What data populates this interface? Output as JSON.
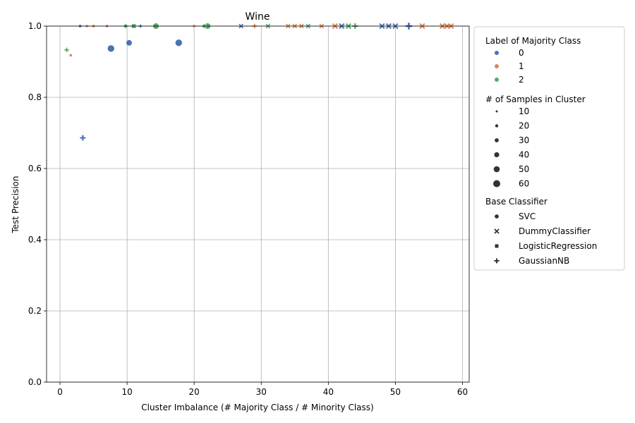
{
  "colors": {
    "class_0": "#4c72b0",
    "class_1": "#dd8452",
    "class_2": "#55a868",
    "grid": "#b0b0b0",
    "legend_neutral": "#333333"
  },
  "chart_data": {
    "type": "scatter",
    "title": "Wine",
    "xlabel": "Cluster Imbalance (# Majority Class / # Minority Class)",
    "ylabel": "Test Precision",
    "xlim": [
      -2,
      61
    ],
    "ylim": [
      0,
      1
    ],
    "xticks": [
      0,
      10,
      20,
      30,
      40,
      50,
      60
    ],
    "yticks": [
      0.0,
      0.2,
      0.4,
      0.6,
      0.8,
      1.0
    ],
    "grid": true,
    "legend_position": "outside-right",
    "legend": {
      "hue_title": "Label of Majority Class",
      "hue_labels": [
        "0",
        "1",
        "2"
      ],
      "size_title": "# of Samples in Cluster",
      "size_labels": [
        "10",
        "20",
        "30",
        "40",
        "50",
        "60"
      ],
      "style_title": "Base Classifier",
      "style_labels": [
        "SVC",
        "DummyClassifier",
        "LogisticRegression",
        "GaussianNB"
      ]
    },
    "points": [
      {
        "x": 7.6,
        "y": 0.937,
        "label": 0,
        "clf": "SVC",
        "n": 60
      },
      {
        "x": 10.3,
        "y": 0.953,
        "label": 0,
        "clf": "SVC",
        "n": 50
      },
      {
        "x": 17.7,
        "y": 0.953,
        "label": 0,
        "clf": "SVC",
        "n": 60
      },
      {
        "x": 3.0,
        "y": 1.0,
        "label": 0,
        "clf": "SVC",
        "n": 20
      },
      {
        "x": 14.3,
        "y": 1.0,
        "label": 2,
        "clf": "SVC",
        "n": 50
      },
      {
        "x": 22.0,
        "y": 1.0,
        "label": 2,
        "clf": "SVC",
        "n": 50
      },
      {
        "x": 21.5,
        "y": 1.0,
        "label": 2,
        "clf": "SVC",
        "n": 30
      },
      {
        "x": 9.8,
        "y": 1.0,
        "label": 2,
        "clf": "SVC",
        "n": 30
      },
      {
        "x": 5.0,
        "y": 1.0,
        "label": 1,
        "clf": "SVC",
        "n": 20
      },
      {
        "x": 7.0,
        "y": 1.0,
        "label": 1,
        "clf": "SVC",
        "n": 20
      },
      {
        "x": 3.4,
        "y": 0.686,
        "label": 0,
        "clf": "GaussianNB",
        "n": 40
      },
      {
        "x": 1.0,
        "y": 0.933,
        "label": 2,
        "clf": "GaussianNB",
        "n": 30
      },
      {
        "x": 12.0,
        "y": 1.0,
        "label": 0,
        "clf": "GaussianNB",
        "n": 20
      },
      {
        "x": 52.0,
        "y": 1.0,
        "label": 0,
        "clf": "GaussianNB",
        "n": 50
      },
      {
        "x": 44.0,
        "y": 1.0,
        "label": 2,
        "clf": "GaussianNB",
        "n": 40
      },
      {
        "x": 29.0,
        "y": 1.0,
        "label": 1,
        "clf": "GaussianNB",
        "n": 30
      },
      {
        "x": 1.6,
        "y": 0.918,
        "label": 1,
        "clf": "LogisticRegression",
        "n": 20
      },
      {
        "x": 11.0,
        "y": 1.0,
        "label": 2,
        "clf": "LogisticRegression",
        "n": 40
      },
      {
        "x": 4.0,
        "y": 1.0,
        "label": 1,
        "clf": "LogisticRegression",
        "n": 20
      },
      {
        "x": 20.0,
        "y": 1.0,
        "label": 1,
        "clf": "LogisticRegression",
        "n": 20
      },
      {
        "x": 27.0,
        "y": 1.0,
        "label": 0,
        "clf": "DummyClassifier",
        "n": 30
      },
      {
        "x": 42.0,
        "y": 1.0,
        "label": 0,
        "clf": "DummyClassifier",
        "n": 40
      },
      {
        "x": 48.0,
        "y": 1.0,
        "label": 0,
        "clf": "DummyClassifier",
        "n": 40
      },
      {
        "x": 49.0,
        "y": 1.0,
        "label": 0,
        "clf": "DummyClassifier",
        "n": 40
      },
      {
        "x": 50.0,
        "y": 1.0,
        "label": 0,
        "clf": "DummyClassifier",
        "n": 40
      },
      {
        "x": 31.0,
        "y": 1.0,
        "label": 2,
        "clf": "DummyClassifier",
        "n": 30
      },
      {
        "x": 37.0,
        "y": 1.0,
        "label": 2,
        "clf": "DummyClassifier",
        "n": 30
      },
      {
        "x": 43.0,
        "y": 1.0,
        "label": 2,
        "clf": "DummyClassifier",
        "n": 40
      },
      {
        "x": 34.0,
        "y": 1.0,
        "label": 1,
        "clf": "DummyClassifier",
        "n": 30
      },
      {
        "x": 35.0,
        "y": 1.0,
        "label": 1,
        "clf": "DummyClassifier",
        "n": 30
      },
      {
        "x": 36.0,
        "y": 1.0,
        "label": 1,
        "clf": "DummyClassifier",
        "n": 30
      },
      {
        "x": 39.0,
        "y": 1.0,
        "label": 1,
        "clf": "DummyClassifier",
        "n": 30
      },
      {
        "x": 41.0,
        "y": 1.0,
        "label": 1,
        "clf": "DummyClassifier",
        "n": 40
      },
      {
        "x": 54.0,
        "y": 1.0,
        "label": 1,
        "clf": "DummyClassifier",
        "n": 40
      },
      {
        "x": 57.0,
        "y": 1.0,
        "label": 1,
        "clf": "DummyClassifier",
        "n": 40
      },
      {
        "x": 57.7,
        "y": 1.0,
        "label": 1,
        "clf": "DummyClassifier",
        "n": 40
      },
      {
        "x": 58.3,
        "y": 1.0,
        "label": 1,
        "clf": "DummyClassifier",
        "n": 40
      }
    ]
  }
}
